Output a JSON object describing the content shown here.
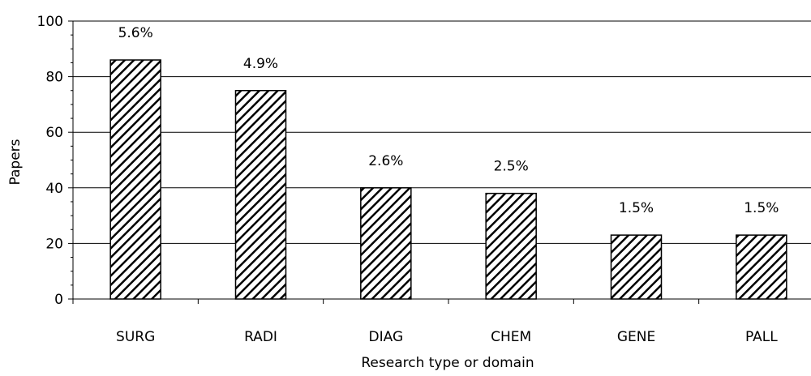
{
  "chart_data": {
    "type": "bar",
    "categories": [
      "SURG",
      "RADI",
      "DIAG",
      "CHEM",
      "GENE",
      "PALL"
    ],
    "values": [
      86,
      75,
      40,
      38,
      23,
      23
    ],
    "data_labels": [
      "5.6%",
      "4.9%",
      "2.6%",
      "2.5%",
      "1.5%",
      "1.5%"
    ],
    "xlabel": "Research type or domain",
    "ylabel": "Papers",
    "ylim": [
      0,
      100
    ],
    "yticks": [
      0,
      20,
      40,
      60,
      80,
      100
    ],
    "grid": true,
    "bar_pattern": "diagonal-hatch",
    "colors": {
      "bar_fill": "#ffffff",
      "hatch": "#000000",
      "grid": "#000000",
      "axis": "#000000"
    }
  }
}
